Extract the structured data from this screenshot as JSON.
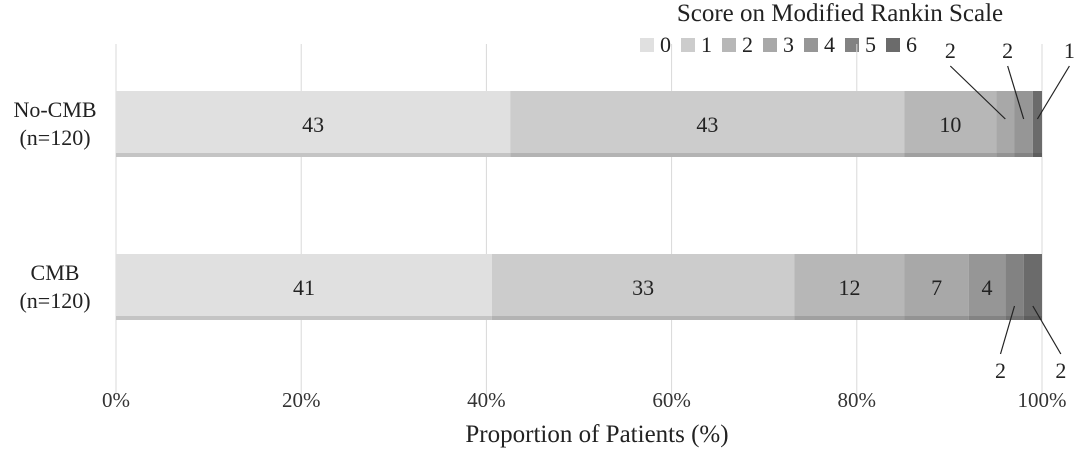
{
  "chart_data": {
    "type": "bar",
    "orientation": "horizontal",
    "stacked": "percent",
    "legend_title": "Score on Modified Rankin Scale",
    "legend_position": "top-right",
    "xlabel": "Proportion of Patients (%)",
    "xlim": [
      0,
      100
    ],
    "x_ticks": [
      "0%",
      "20%",
      "40%",
      "60%",
      "80%",
      "100%"
    ],
    "grid": "vertical",
    "categories": [
      {
        "line1": "No-CMB",
        "line2": "(n=120)"
      },
      {
        "line1": "CMB",
        "line2": "(n=120)"
      }
    ],
    "series": [
      {
        "name": "0",
        "color": "#e0e0e0",
        "values": [
          43,
          41
        ]
      },
      {
        "name": "1",
        "color": "#cccccc",
        "values": [
          43,
          33
        ]
      },
      {
        "name": "2",
        "color": "#b7b7b7",
        "values": [
          10,
          12
        ]
      },
      {
        "name": "3",
        "color": "#a8a8a8",
        "values": [
          2,
          7
        ]
      },
      {
        "name": "4",
        "color": "#969696",
        "values": [
          2,
          4
        ]
      },
      {
        "name": "5",
        "color": "#828282",
        "values": [
          0,
          2
        ]
      },
      {
        "name": "6",
        "color": "#6b6b6b",
        "values": [
          1,
          2
        ]
      }
    ]
  }
}
